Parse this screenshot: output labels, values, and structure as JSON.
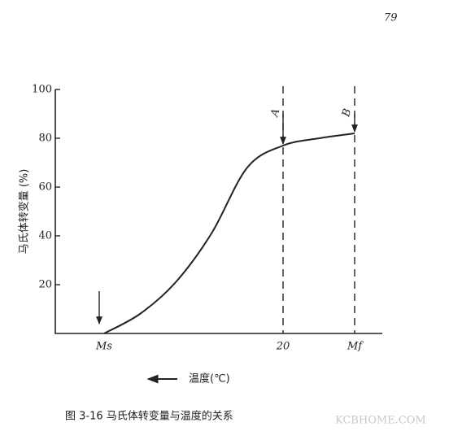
{
  "page_number": "79",
  "chart_data": {
    "type": "line",
    "ylabel": "马氏体转变量 (%)",
    "xlabel": "温度(℃)",
    "caption": "图 3-16    马氏体转变量与温度的关系",
    "watermark": "KCBHOME.COM",
    "categories": [
      "Ms",
      null,
      null,
      null,
      null,
      "20",
      null,
      "Mf"
    ],
    "values": [
      0,
      8,
      21,
      41,
      68,
      77,
      80,
      82
    ],
    "color": "#222222",
    "ylim": [
      0,
      100
    ],
    "yticks": [
      20,
      40,
      60,
      80,
      100
    ],
    "annotations": [
      {
        "category": 5,
        "label": "A"
      },
      {
        "category": 7,
        "label": "B"
      }
    ]
  }
}
